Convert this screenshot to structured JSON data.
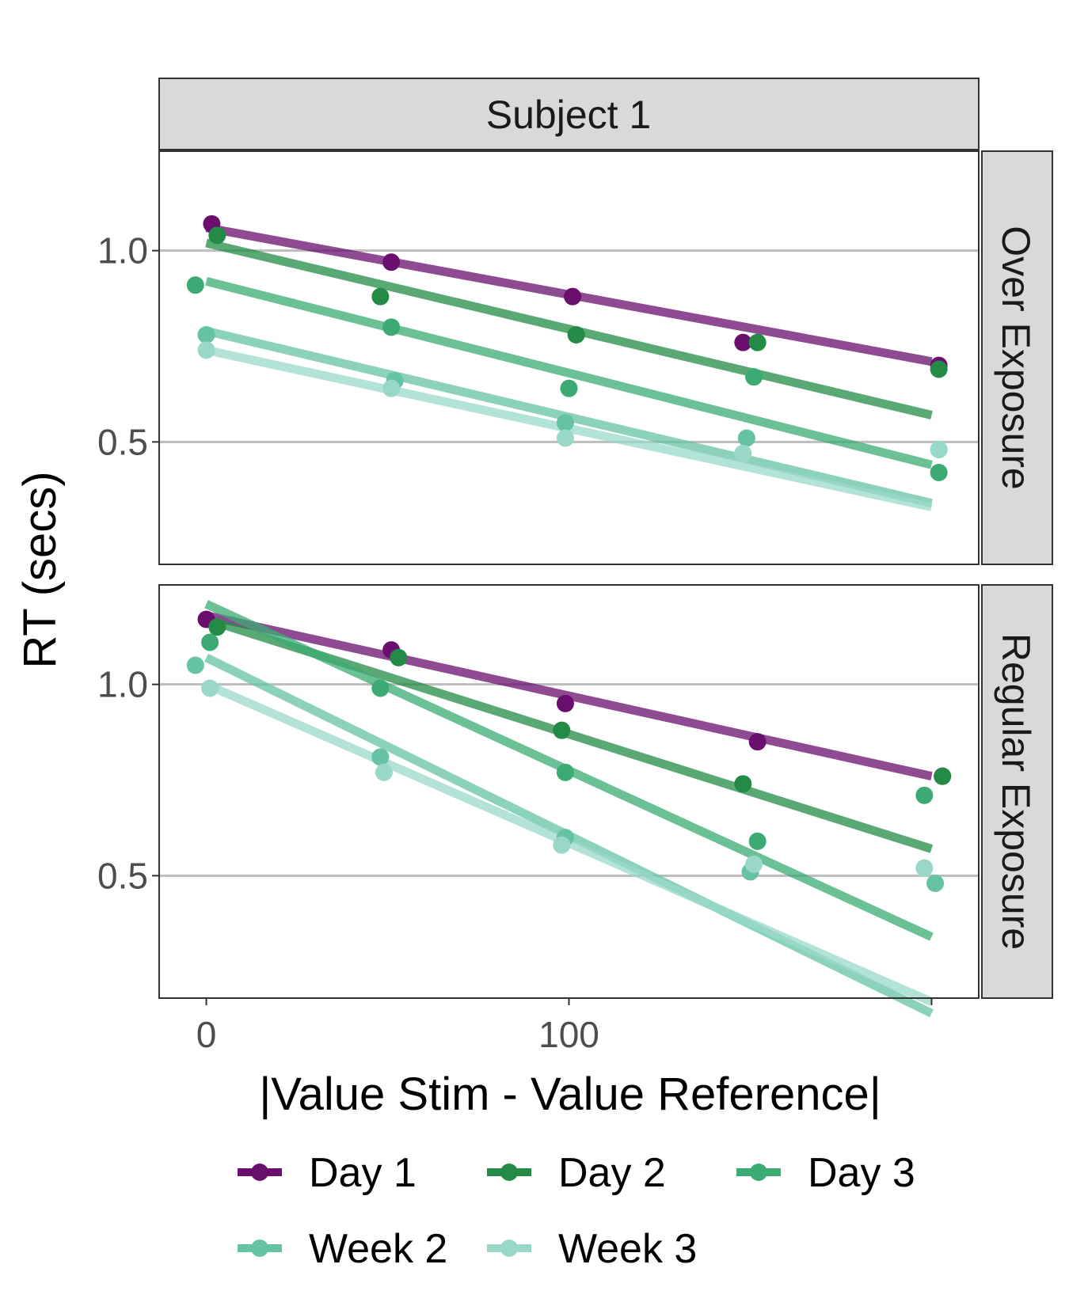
{
  "chart_data": {
    "type": "scatter",
    "title": "",
    "facet_column": "Subject 1",
    "xlabel": "|Value Stim - Value Reference|",
    "ylabel": "RT (secs)",
    "xlim": [
      -13,
      213
    ],
    "ylim": [
      0.18,
      1.26
    ],
    "x_ticks": [
      0,
      100,
      200
    ],
    "x_tick_labels": [
      "0",
      "100",
      ""
    ],
    "y_ticks": [
      0.5,
      1.0
    ],
    "y_tick_labels": [
      "0.5",
      "1.0"
    ],
    "grid": "major y only",
    "legend_position": "bottom",
    "series": [
      {
        "name": "Day 1",
        "color": "#6a0f6e"
      },
      {
        "name": "Day 2",
        "color": "#238b45"
      },
      {
        "name": "Day 3",
        "color": "#3bab73"
      },
      {
        "name": "Week 2",
        "color": "#66c2a4"
      },
      {
        "name": "Week 3",
        "color": "#99d8c9"
      }
    ],
    "panels": [
      {
        "label": "Over Exposure",
        "points": {
          "Day 1": [
            [
              1.5,
              1.07
            ],
            [
              51,
              0.97
            ],
            [
              101,
              0.88
            ],
            [
              148,
              0.76
            ],
            [
              202,
              0.7
            ]
          ],
          "Day 2": [
            [
              3,
              1.04
            ],
            [
              48,
              0.88
            ],
            [
              102,
              0.78
            ],
            [
              152,
              0.76
            ],
            [
              202,
              0.69
            ]
          ],
          "Day 3": [
            [
              -3,
              0.91
            ],
            [
              51,
              0.8
            ],
            [
              100,
              0.64
            ],
            [
              151,
              0.67
            ],
            [
              202,
              0.42
            ]
          ],
          "Week 2": [
            [
              0,
              0.78
            ],
            [
              52,
              0.66
            ],
            [
              99,
              0.55
            ],
            [
              149,
              0.51
            ],
            [
              202,
              0.48
            ]
          ],
          "Week 3": [
            [
              0,
              0.74
            ],
            [
              51,
              0.64
            ],
            [
              99,
              0.51
            ],
            [
              148,
              0.47
            ],
            [
              202,
              0.48
            ]
          ]
        },
        "fits": {
          "Day 1": [
            [
              0,
              1.06
            ],
            [
              200,
              0.71
            ]
          ],
          "Day 2": [
            [
              0,
              1.02
            ],
            [
              200,
              0.57
            ]
          ],
          "Day 3": [
            [
              0,
              0.92
            ],
            [
              200,
              0.44
            ]
          ],
          "Week 2": [
            [
              0,
              0.79
            ],
            [
              200,
              0.34
            ]
          ],
          "Week 3": [
            [
              0,
              0.74
            ],
            [
              200,
              0.33
            ]
          ]
        }
      },
      {
        "label": "Regular Exposure",
        "points": {
          "Day 1": [
            [
              0,
              1.17
            ],
            [
              51,
              1.09
            ],
            [
              99,
              0.95
            ],
            [
              152,
              0.85
            ],
            [
              203,
              0.76
            ]
          ],
          "Day 2": [
            [
              3,
              1.15
            ],
            [
              53,
              1.07
            ],
            [
              98,
              0.88
            ],
            [
              148,
              0.74
            ],
            [
              203,
              0.76
            ]
          ],
          "Day 3": [
            [
              1,
              1.11
            ],
            [
              48,
              0.99
            ],
            [
              99,
              0.77
            ],
            [
              152,
              0.59
            ],
            [
              198,
              0.71
            ]
          ],
          "Week 2": [
            [
              -3,
              1.05
            ],
            [
              48,
              0.81
            ],
            [
              99,
              0.6
            ],
            [
              150,
              0.51
            ],
            [
              201,
              0.48
            ]
          ],
          "Week 3": [
            [
              1,
              0.99
            ],
            [
              49,
              0.77
            ],
            [
              98,
              0.58
            ],
            [
              151,
              0.53
            ],
            [
              198,
              0.52
            ]
          ]
        },
        "fits": {
          "Day 1": [
            [
              0,
              1.18
            ],
            [
              200,
              0.76
            ]
          ],
          "Day 2": [
            [
              0,
              1.17
            ],
            [
              200,
              0.57
            ]
          ],
          "Day 3": [
            [
              0,
              1.21
            ],
            [
              200,
              0.34
            ]
          ],
          "Week 2": [
            [
              0,
              1.07
            ],
            [
              200,
              0.14
            ]
          ],
          "Week 3": [
            [
              0,
              1.0
            ],
            [
              200,
              0.17
            ]
          ]
        }
      }
    ]
  }
}
